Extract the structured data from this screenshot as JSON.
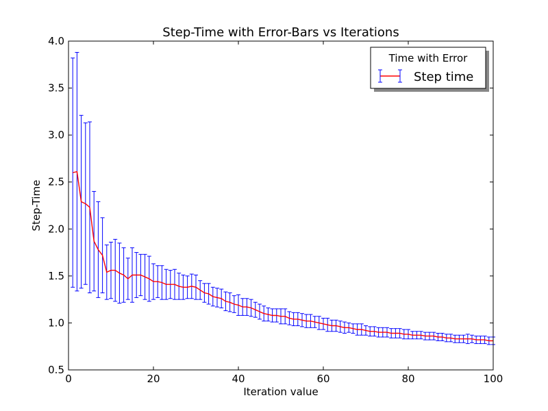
{
  "chart_data": {
    "type": "line",
    "title": "Step-Time with Error-Bars vs Iterations",
    "xlabel": "Iteration value",
    "ylabel": "Step-Time",
    "xlim": [
      0,
      100
    ],
    "ylim": [
      0.5,
      4.0
    ],
    "xticks": [
      0,
      20,
      40,
      60,
      80,
      100
    ],
    "yticks": [
      0.5,
      1.0,
      1.5,
      2.0,
      2.5,
      3.0,
      3.5,
      4.0
    ],
    "grid": false,
    "legend": {
      "title": "Time with Error",
      "position": "top-right"
    },
    "series": [
      {
        "name": "Step time",
        "line_color": "#ff0000",
        "errorbar_color": "#0000ff",
        "x": [
          1,
          2,
          3,
          4,
          5,
          6,
          7,
          8,
          9,
          10,
          11,
          12,
          13,
          14,
          15,
          16,
          17,
          18,
          19,
          20,
          21,
          22,
          23,
          24,
          25,
          26,
          27,
          28,
          29,
          30,
          31,
          32,
          33,
          34,
          35,
          36,
          37,
          38,
          39,
          40,
          41,
          42,
          43,
          44,
          45,
          46,
          47,
          48,
          49,
          50,
          51,
          52,
          53,
          54,
          55,
          56,
          57,
          58,
          59,
          60,
          61,
          62,
          63,
          64,
          65,
          66,
          67,
          68,
          69,
          70,
          71,
          72,
          73,
          74,
          75,
          76,
          77,
          78,
          79,
          80,
          81,
          82,
          83,
          84,
          85,
          86,
          87,
          88,
          89,
          90,
          91,
          92,
          93,
          94,
          95,
          96,
          97,
          98,
          99,
          100
        ],
        "y": [
          2.6,
          2.61,
          2.29,
          2.27,
          2.23,
          1.87,
          1.78,
          1.72,
          1.54,
          1.56,
          1.56,
          1.53,
          1.51,
          1.47,
          1.51,
          1.51,
          1.51,
          1.49,
          1.47,
          1.44,
          1.44,
          1.43,
          1.41,
          1.41,
          1.41,
          1.39,
          1.38,
          1.38,
          1.39,
          1.38,
          1.35,
          1.32,
          1.31,
          1.28,
          1.27,
          1.26,
          1.23,
          1.22,
          1.2,
          1.19,
          1.17,
          1.17,
          1.16,
          1.14,
          1.12,
          1.1,
          1.09,
          1.08,
          1.08,
          1.07,
          1.07,
          1.05,
          1.04,
          1.04,
          1.03,
          1.02,
          1.02,
          1.01,
          1.0,
          0.99,
          0.98,
          0.97,
          0.97,
          0.96,
          0.95,
          0.95,
          0.94,
          0.93,
          0.93,
          0.92,
          0.91,
          0.91,
          0.9,
          0.9,
          0.9,
          0.89,
          0.89,
          0.89,
          0.88,
          0.88,
          0.87,
          0.87,
          0.87,
          0.86,
          0.86,
          0.86,
          0.85,
          0.85,
          0.84,
          0.84,
          0.83,
          0.83,
          0.83,
          0.83,
          0.83,
          0.82,
          0.82,
          0.82,
          0.81,
          0.81
        ],
        "err": [
          1.22,
          1.27,
          0.92,
          0.86,
          0.91,
          0.53,
          0.51,
          0.4,
          0.29,
          0.3,
          0.33,
          0.32,
          0.29,
          0.22,
          0.29,
          0.24,
          0.22,
          0.24,
          0.24,
          0.19,
          0.17,
          0.18,
          0.16,
          0.15,
          0.16,
          0.14,
          0.13,
          0.12,
          0.13,
          0.13,
          0.1,
          0.1,
          0.11,
          0.1,
          0.1,
          0.1,
          0.1,
          0.1,
          0.09,
          0.11,
          0.09,
          0.09,
          0.09,
          0.08,
          0.08,
          0.08,
          0.07,
          0.07,
          0.07,
          0.08,
          0.08,
          0.07,
          0.07,
          0.07,
          0.07,
          0.07,
          0.07,
          0.06,
          0.07,
          0.06,
          0.07,
          0.06,
          0.06,
          0.06,
          0.06,
          0.05,
          0.05,
          0.06,
          0.06,
          0.05,
          0.05,
          0.05,
          0.05,
          0.05,
          0.05,
          0.05,
          0.05,
          0.05,
          0.05,
          0.05,
          0.04,
          0.04,
          0.04,
          0.04,
          0.04,
          0.04,
          0.04,
          0.04,
          0.04,
          0.04,
          0.04,
          0.04,
          0.04,
          0.05,
          0.04,
          0.04,
          0.04,
          0.04,
          0.04,
          0.04
        ]
      }
    ]
  }
}
